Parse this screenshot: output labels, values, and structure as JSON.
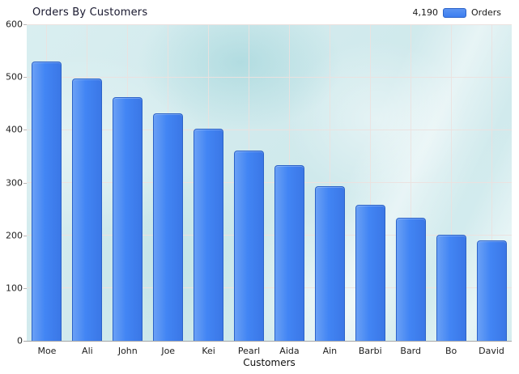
{
  "header": {
    "title": "Orders By Customers"
  },
  "legend": {
    "total": "4,190",
    "label": "Orders",
    "swatch_color": "#3d7ef0"
  },
  "chart_data": {
    "type": "bar",
    "title": "Orders By Customers",
    "xlabel": "Customers",
    "ylabel": "",
    "categories": [
      "Moe",
      "Ali",
      "John",
      "Joe",
      "Kei",
      "Pearl",
      "Aida",
      "Ain",
      "Barbi",
      "Bard",
      "Bo",
      "David"
    ],
    "values": [
      530,
      497,
      462,
      431,
      402,
      360,
      333,
      293,
      258,
      233,
      201,
      190
    ],
    "series_name": "Orders",
    "series_total": "4,190",
    "ylim": [
      0,
      600
    ],
    "yticks": [
      0,
      100,
      200,
      300,
      400,
      500,
      600
    ],
    "grid": true,
    "legend_position": "top-right",
    "bar_color": "#4285f4",
    "bar_border_color": "#2c63c8",
    "plot_background_color": "#d4ecee",
    "gridline_color": "#ece0de"
  }
}
